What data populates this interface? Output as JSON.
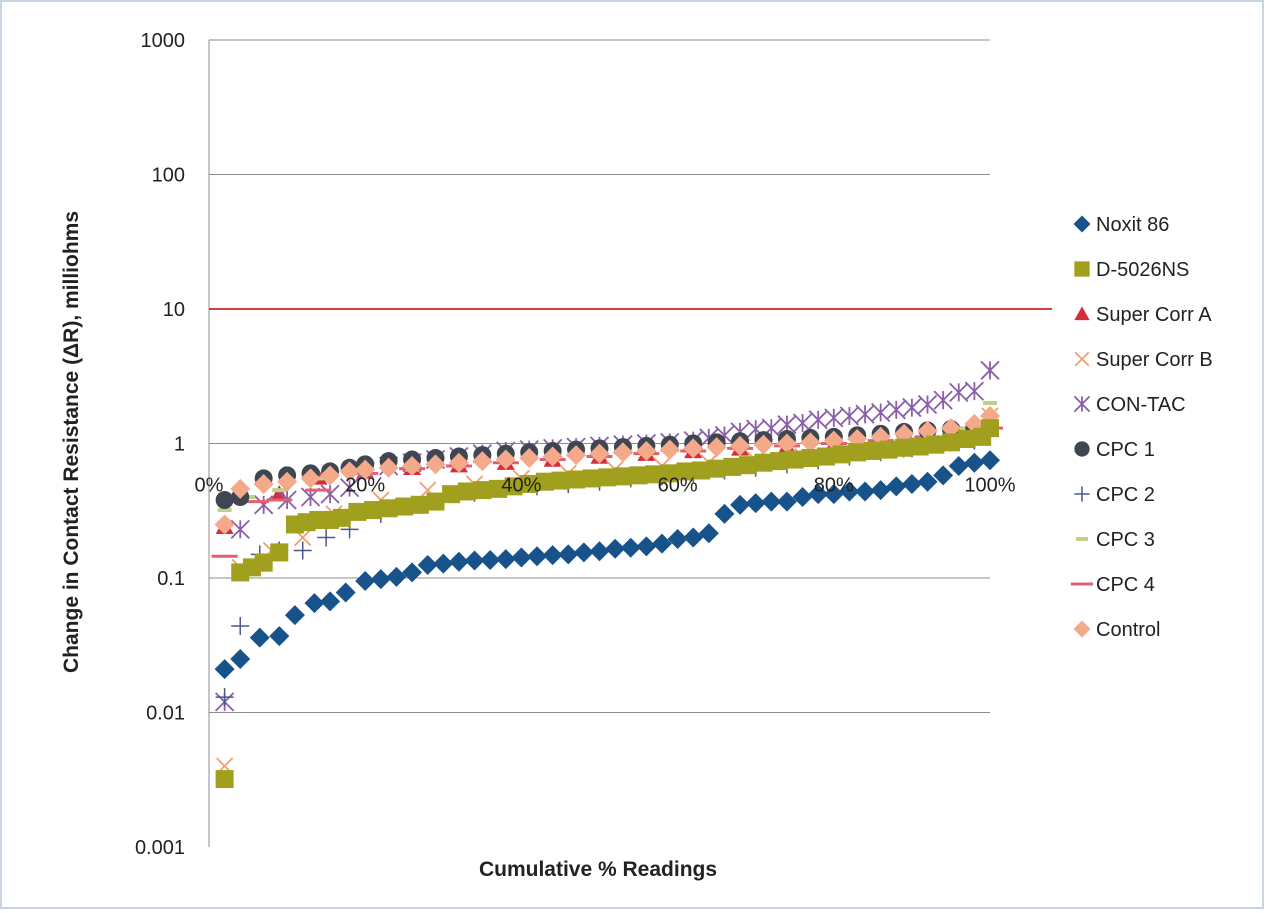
{
  "chart_data": {
    "type": "scatter",
    "title": "",
    "xlabel": "Cumulative % Readings",
    "ylabel": "Change in Contact Resistance (ΔR), milliohms",
    "y_scale": "log",
    "ylim": [
      0.001,
      1000
    ],
    "xlim": [
      0,
      100
    ],
    "y_ticks": [
      "0.001",
      "0.01",
      "0.1",
      "1",
      "10",
      "100",
      "1000"
    ],
    "x_ticks": [
      "0%",
      "20%",
      "40%",
      "60%",
      "80%",
      "100%"
    ],
    "x_tick_positions": [
      0,
      20,
      40,
      60,
      80,
      100
    ],
    "y_tick_values": [
      0.001,
      0.01,
      0.1,
      1,
      10,
      100,
      1000
    ],
    "x_axis_crosses_y_at": 1,
    "grid": "horizontal",
    "threshold_line": {
      "y": 10,
      "color": "#c00000"
    },
    "legend_position": "right",
    "series": [
      {
        "name": "Noxit 86",
        "marker": "diamond",
        "color": "#17538a",
        "x": [
          2,
          4,
          6.5,
          9,
          11,
          13.5,
          15.5,
          17.5,
          20,
          22,
          24,
          26,
          28,
          30,
          32,
          34,
          36,
          38,
          40,
          42,
          44,
          46,
          48,
          50,
          52,
          54,
          56,
          58,
          60,
          62,
          64,
          66,
          68,
          70,
          72,
          74,
          76,
          78,
          80,
          82,
          84,
          86,
          88,
          90,
          92,
          94,
          96,
          98,
          100
        ],
        "y": [
          0.021,
          0.025,
          0.036,
          0.037,
          0.053,
          0.065,
          0.067,
          0.078,
          0.095,
          0.098,
          0.102,
          0.11,
          0.125,
          0.128,
          0.132,
          0.135,
          0.136,
          0.138,
          0.142,
          0.145,
          0.148,
          0.15,
          0.155,
          0.158,
          0.165,
          0.168,
          0.172,
          0.18,
          0.195,
          0.2,
          0.215,
          0.3,
          0.35,
          0.36,
          0.37,
          0.37,
          0.4,
          0.42,
          0.42,
          0.44,
          0.44,
          0.45,
          0.48,
          0.5,
          0.52,
          0.58,
          0.68,
          0.72,
          0.75
        ]
      },
      {
        "name": "D-5026NS",
        "marker": "square",
        "color": "#a0a01e",
        "x": [
          2,
          4,
          5.5,
          7,
          9,
          11,
          12.5,
          14,
          15.5,
          17,
          19,
          21,
          23,
          25,
          27,
          29,
          31,
          33,
          35,
          37,
          39,
          41,
          43,
          45,
          47,
          49,
          51,
          53,
          55,
          57,
          59,
          61,
          63,
          65,
          67,
          69,
          71,
          73,
          75,
          77,
          79,
          81,
          83,
          85,
          87,
          89,
          91,
          93,
          95,
          97,
          99,
          100
        ],
        "y": [
          0.0032,
          0.11,
          0.12,
          0.13,
          0.155,
          0.25,
          0.26,
          0.27,
          0.27,
          0.28,
          0.31,
          0.32,
          0.33,
          0.34,
          0.35,
          0.37,
          0.42,
          0.44,
          0.45,
          0.46,
          0.48,
          0.5,
          0.52,
          0.53,
          0.54,
          0.55,
          0.56,
          0.57,
          0.58,
          0.59,
          0.6,
          0.62,
          0.63,
          0.65,
          0.67,
          0.69,
          0.72,
          0.74,
          0.76,
          0.78,
          0.8,
          0.83,
          0.86,
          0.88,
          0.9,
          0.93,
          0.95,
          0.98,
          1.02,
          1.08,
          1.12,
          1.3
        ]
      },
      {
        "name": "Super Corr A",
        "marker": "triangle",
        "color": "#d62d3c",
        "x": [
          2,
          9,
          14,
          20,
          26,
          32,
          38,
          44,
          50,
          56,
          62,
          68,
          74,
          80,
          86,
          92,
          96,
          100
        ],
        "y": [
          0.24,
          0.42,
          0.56,
          0.62,
          0.66,
          0.69,
          0.72,
          0.76,
          0.8,
          0.84,
          0.88,
          0.92,
          0.95,
          0.98,
          1.02,
          1.1,
          1.2,
          1.45
        ]
      },
      {
        "name": "Super Corr B",
        "marker": "x",
        "color": "#f0a070",
        "x": [
          2,
          4,
          8,
          12,
          16,
          22,
          28,
          34,
          40,
          46,
          52,
          58,
          64,
          70,
          76,
          82,
          88,
          94,
          100
        ],
        "y": [
          0.004,
          0.12,
          0.16,
          0.2,
          0.3,
          0.38,
          0.45,
          0.5,
          0.55,
          0.6,
          0.64,
          0.68,
          0.72,
          0.75,
          0.8,
          0.85,
          0.9,
          1.0,
          1.6
        ]
      },
      {
        "name": "CON-TAC",
        "marker": "star",
        "color": "#8a5fa8",
        "x": [
          2,
          4,
          7,
          10,
          13,
          15.5,
          18,
          20,
          23,
          26,
          29,
          32,
          35,
          38,
          41,
          44,
          47,
          50,
          53,
          56,
          59,
          62,
          64,
          66,
          68,
          70,
          72,
          74,
          76,
          78,
          80,
          82,
          84,
          86,
          88,
          90,
          92,
          94,
          96,
          98,
          100
        ],
        "y": [
          0.012,
          0.23,
          0.35,
          0.38,
          0.4,
          0.42,
          0.47,
          0.62,
          0.68,
          0.72,
          0.76,
          0.8,
          0.84,
          0.88,
          0.9,
          0.92,
          0.94,
          0.96,
          0.98,
          1.0,
          1.02,
          1.05,
          1.1,
          1.15,
          1.22,
          1.28,
          1.3,
          1.38,
          1.42,
          1.5,
          1.55,
          1.6,
          1.65,
          1.7,
          1.78,
          1.85,
          1.95,
          2.1,
          2.4,
          2.45,
          3.5
        ]
      },
      {
        "name": "CPC 1",
        "marker": "circle",
        "color": "#3e4651",
        "x": [
          2,
          4,
          7,
          10,
          13,
          15.5,
          18,
          20,
          23,
          26,
          29,
          32,
          35,
          38,
          41,
          44,
          47,
          50,
          53,
          56,
          59,
          62,
          65,
          68,
          71,
          74,
          77,
          80,
          83,
          86,
          89,
          92,
          95,
          98,
          100
        ],
        "y": [
          0.38,
          0.4,
          0.55,
          0.58,
          0.6,
          0.62,
          0.66,
          0.7,
          0.74,
          0.76,
          0.78,
          0.8,
          0.82,
          0.84,
          0.86,
          0.88,
          0.9,
          0.92,
          0.94,
          0.96,
          0.98,
          1.0,
          1.02,
          1.04,
          1.06,
          1.08,
          1.1,
          1.12,
          1.15,
          1.18,
          1.22,
          1.25,
          1.28,
          1.3,
          1.32
        ]
      },
      {
        "name": "CPC 2",
        "marker": "plus",
        "color": "#4a5a8e",
        "x": [
          2,
          4,
          6.5,
          9,
          12,
          15,
          18,
          22,
          26,
          30,
          34,
          38,
          42,
          46,
          50,
          54,
          58,
          62,
          66,
          70,
          74,
          78,
          82,
          86,
          90,
          94,
          98,
          100
        ],
        "y": [
          0.013,
          0.044,
          0.15,
          0.16,
          0.16,
          0.2,
          0.23,
          0.3,
          0.35,
          0.4,
          0.43,
          0.46,
          0.48,
          0.5,
          0.52,
          0.55,
          0.57,
          0.6,
          0.63,
          0.66,
          0.7,
          0.75,
          0.8,
          0.86,
          0.92,
          0.98,
          1.05,
          1.2
        ]
      },
      {
        "name": "CPC 3",
        "marker": "dash",
        "color": "#c0d088",
        "x": [
          2,
          5,
          9,
          14,
          20,
          26,
          32,
          38,
          44,
          50,
          56,
          62,
          68,
          74,
          80,
          86,
          92,
          96,
          100
        ],
        "y": [
          0.32,
          0.4,
          0.45,
          0.55,
          0.6,
          0.64,
          0.68,
          0.72,
          0.76,
          0.8,
          0.84,
          0.88,
          0.92,
          0.96,
          1.0,
          1.05,
          1.1,
          1.3,
          2.0
        ]
      },
      {
        "name": "CPC 4",
        "marker": "line",
        "color": "#e06070",
        "x": [
          2,
          6,
          9,
          14,
          20,
          26,
          32,
          38,
          44,
          50,
          56,
          62,
          68,
          74,
          80,
          86,
          92,
          98,
          100
        ],
        "y": [
          0.145,
          0.37,
          0.38,
          0.45,
          0.6,
          0.65,
          0.68,
          0.72,
          0.76,
          0.8,
          0.84,
          0.88,
          0.92,
          0.96,
          1.0,
          1.05,
          1.12,
          1.22,
          1.3
        ]
      },
      {
        "name": "Control",
        "marker": "diamond",
        "color": "#f4a98a",
        "x": [
          2,
          4,
          7,
          10,
          13,
          15.5,
          18,
          20,
          23,
          26,
          29,
          32,
          35,
          38,
          41,
          44,
          47,
          50,
          53,
          56,
          59,
          62,
          65,
          68,
          71,
          74,
          77,
          80,
          83,
          86,
          89,
          92,
          95,
          98,
          100
        ],
        "y": [
          0.25,
          0.46,
          0.5,
          0.52,
          0.55,
          0.58,
          0.62,
          0.64,
          0.66,
          0.68,
          0.7,
          0.72,
          0.74,
          0.76,
          0.78,
          0.8,
          0.82,
          0.84,
          0.86,
          0.88,
          0.9,
          0.92,
          0.94,
          0.96,
          0.98,
          1.0,
          1.02,
          1.05,
          1.08,
          1.12,
          1.18,
          1.24,
          1.3,
          1.4,
          1.6
        ]
      }
    ]
  }
}
